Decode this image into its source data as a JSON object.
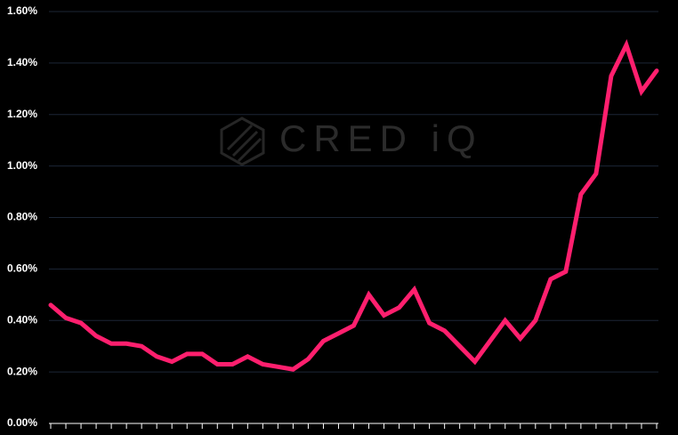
{
  "chart_data": {
    "type": "line",
    "watermark": "CRED iQ",
    "categories": [
      null,
      null,
      null,
      null,
      null,
      null,
      null,
      null,
      null,
      null,
      null,
      null,
      null,
      null,
      null,
      null,
      null,
      null,
      null,
      null,
      null,
      null,
      null,
      null,
      null,
      null,
      null,
      null,
      null,
      null,
      null,
      null,
      null,
      null,
      null,
      null,
      null,
      null,
      null,
      null,
      null
    ],
    "series": [
      {
        "color": "#ff1f6e",
        "values": [
          0.46,
          0.41,
          0.39,
          0.34,
          0.31,
          0.31,
          0.3,
          0.26,
          0.24,
          0.27,
          0.27,
          0.23,
          0.23,
          0.26,
          0.23,
          0.22,
          0.21,
          0.25,
          0.32,
          0.35,
          0.38,
          0.5,
          0.42,
          0.45,
          0.52,
          0.39,
          0.36,
          0.3,
          0.24,
          0.32,
          0.4,
          0.33,
          0.4,
          0.56,
          0.59,
          0.89,
          0.97,
          1.35,
          1.47,
          1.29,
          1.37
        ]
      }
    ],
    "ylim": [
      0,
      1.6
    ],
    "yticks": [
      {
        "value": 0,
        "label": "0.00%"
      },
      {
        "value": 0.2,
        "label": "0.20%"
      },
      {
        "value": 0.4,
        "label": "0.40%"
      },
      {
        "value": 0.6,
        "label": "0.60%"
      },
      {
        "value": 0.8,
        "label": "0.80%"
      },
      {
        "value": 1.0,
        "label": "1.00%"
      },
      {
        "value": 1.2,
        "label": "1.20%"
      },
      {
        "value": 1.4,
        "label": "1.40%"
      },
      {
        "value": 1.6,
        "label": "1.60%"
      }
    ],
    "grid": true
  }
}
